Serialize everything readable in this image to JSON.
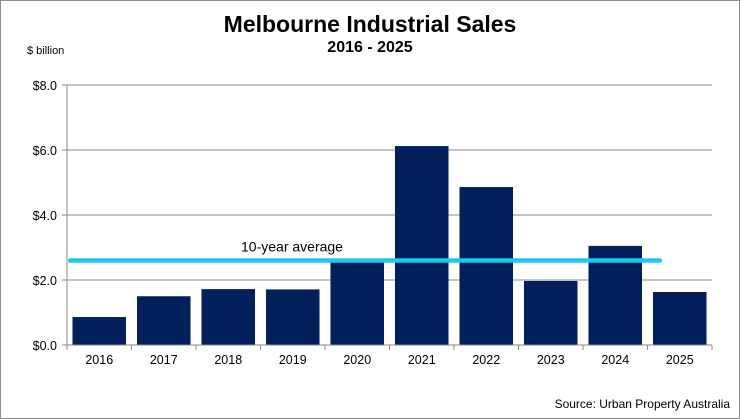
{
  "chart_data": {
    "type": "bar",
    "title": "Melbourne Industrial Sales",
    "subtitle": "2016 - 2025",
    "xlabel": "",
    "ylabel": "$ billion",
    "categories": [
      "2016",
      "2017",
      "2018",
      "2019",
      "2020",
      "2021",
      "2022",
      "2023",
      "2024",
      "2025"
    ],
    "values": [
      0.86,
      1.5,
      1.72,
      1.71,
      2.6,
      6.12,
      4.86,
      1.97,
      3.05,
      1.63
    ],
    "ylim": [
      0,
      8
    ],
    "yticks": [
      0,
      2,
      4,
      6,
      8
    ],
    "ytick_labels": [
      "$0.0",
      "$2.0",
      "$4.0",
      "$6.0",
      "$8.0"
    ],
    "grid": true,
    "bar_color": "#001f5b",
    "reference_line": {
      "label": "10-year average",
      "value": 2.6,
      "color": "#1ec8ee"
    },
    "source": "Source: Urban Property Australia"
  }
}
